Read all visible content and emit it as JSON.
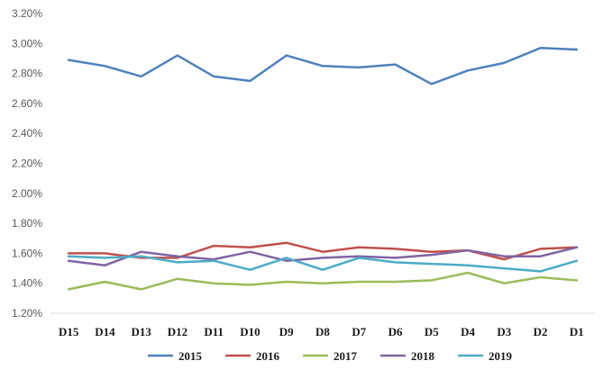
{
  "chart_data": {
    "type": "line",
    "title": "",
    "xlabel": "",
    "ylabel": "",
    "categories": [
      "D15",
      "D14",
      "D13",
      "D12",
      "D11",
      "D10",
      "D9",
      "D8",
      "D7",
      "D6",
      "D5",
      "D4",
      "D3",
      "D2",
      "D1"
    ],
    "ylim": [
      1.2,
      3.2
    ],
    "ytick_labels": [
      "1.20%",
      "1.40%",
      "1.60%",
      "1.80%",
      "2.00%",
      "2.20%",
      "2.40%",
      "2.60%",
      "2.80%",
      "3.00%",
      "3.20%"
    ],
    "grid": false,
    "legend_position": "bottom",
    "series": [
      {
        "name": "2015",
        "color": "#4f81bd",
        "values": [
          2.89,
          2.85,
          2.78,
          2.92,
          2.78,
          2.75,
          2.92,
          2.85,
          2.84,
          2.86,
          2.73,
          2.82,
          2.87,
          2.97,
          2.96
        ]
      },
      {
        "name": "2016",
        "color": "#c0504d",
        "values": [
          1.6,
          1.6,
          1.57,
          1.57,
          1.65,
          1.64,
          1.67,
          1.61,
          1.64,
          1.63,
          1.61,
          1.62,
          1.56,
          1.63,
          1.64
        ]
      },
      {
        "name": "2017",
        "color": "#9bbb59",
        "values": [
          1.36,
          1.41,
          1.36,
          1.43,
          1.4,
          1.39,
          1.41,
          1.4,
          1.41,
          1.41,
          1.42,
          1.47,
          1.4,
          1.44,
          1.42
        ]
      },
      {
        "name": "2018",
        "color": "#8064a2",
        "values": [
          1.55,
          1.52,
          1.61,
          1.58,
          1.56,
          1.61,
          1.55,
          1.57,
          1.58,
          1.57,
          1.59,
          1.62,
          1.58,
          1.58,
          1.64
        ]
      },
      {
        "name": "2019",
        "color": "#4bacc6",
        "values": [
          1.58,
          1.57,
          1.58,
          1.54,
          1.55,
          1.49,
          1.57,
          1.49,
          1.57,
          1.54,
          1.53,
          1.52,
          1.5,
          1.48,
          1.55
        ]
      }
    ]
  }
}
